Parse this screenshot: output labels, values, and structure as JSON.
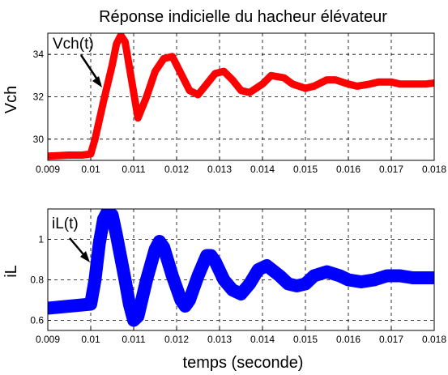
{
  "chart_data": [
    {
      "type": "line",
      "title": "Réponse indicielle du hacheur élévateur",
      "ylabel": "Vch",
      "xlabel": "",
      "xlim": [
        0.009,
        0.018
      ],
      "ylim": [
        29,
        35
      ],
      "grid": true,
      "xticks": [
        "0.009",
        "0.01",
        "0.011",
        "0.012",
        "0.013",
        "0.014",
        "0.015",
        "0.016",
        "0.017",
        "0.018"
      ],
      "yticks": [
        "30",
        "32",
        "34"
      ],
      "color": "#ff0000",
      "annotation": "Vch(t)",
      "series": [
        {
          "x": [
            0.009,
            0.0095,
            0.0098,
            0.01,
            0.0101,
            0.0103,
            0.0105,
            0.0106,
            0.0107,
            0.0108,
            0.011,
            0.0111,
            0.0113,
            0.0115,
            0.0117,
            0.0119,
            0.0121,
            0.0123,
            0.0125,
            0.0127,
            0.0129,
            0.0131,
            0.0133,
            0.0135,
            0.0137,
            0.014,
            0.0142,
            0.0145,
            0.0147,
            0.015,
            0.0152,
            0.0155,
            0.0157,
            0.016,
            0.0162,
            0.0165,
            0.0167,
            0.017,
            0.0172,
            0.0175,
            0.0178,
            0.018
          ],
          "values": [
            29.2,
            29.25,
            29.25,
            29.3,
            30.0,
            31.8,
            33.5,
            34.5,
            34.9,
            34.6,
            32.2,
            31.0,
            32.0,
            33.2,
            33.8,
            33.9,
            33.1,
            32.3,
            32.1,
            32.6,
            33.1,
            33.2,
            32.8,
            32.3,
            32.2,
            32.6,
            33.0,
            32.9,
            32.6,
            32.4,
            32.5,
            32.8,
            32.8,
            32.6,
            32.5,
            32.6,
            32.7,
            32.7,
            32.6,
            32.6,
            32.6,
            32.65
          ]
        }
      ]
    },
    {
      "type": "line",
      "title": "",
      "ylabel": "iL",
      "xlabel": "temps (seconde)",
      "xlim": [
        0.009,
        0.018
      ],
      "ylim": [
        0.55,
        1.15
      ],
      "grid": true,
      "xticks": [
        "0.009",
        "0.01",
        "0.011",
        "0.012",
        "0.013",
        "0.014",
        "0.015",
        "0.016",
        "0.017",
        "0.018"
      ],
      "yticks": [
        "0.6",
        "0.8",
        "1"
      ],
      "color": "#0000ff",
      "annotation": "iL(t)",
      "series": [
        {
          "x": [
            0.009,
            0.0095,
            0.01,
            0.0101,
            0.0102,
            0.0103,
            0.0104,
            0.0105,
            0.0106,
            0.0108,
            0.0109,
            0.011,
            0.0111,
            0.0113,
            0.0115,
            0.0116,
            0.0117,
            0.0119,
            0.0121,
            0.0122,
            0.0123,
            0.0125,
            0.0127,
            0.0128,
            0.0129,
            0.0131,
            0.0133,
            0.0135,
            0.0137,
            0.0139,
            0.0141,
            0.0144,
            0.0146,
            0.0148,
            0.015,
            0.0152,
            0.0155,
            0.0158,
            0.016,
            0.0163,
            0.0166,
            0.0169,
            0.0172,
            0.0175,
            0.0178,
            0.018
          ],
          "values": [
            0.66,
            0.67,
            0.68,
            0.8,
            0.98,
            1.1,
            1.14,
            1.12,
            1.02,
            0.8,
            0.68,
            0.6,
            0.62,
            0.8,
            0.95,
            0.99,
            0.96,
            0.82,
            0.7,
            0.67,
            0.7,
            0.82,
            0.92,
            0.92,
            0.89,
            0.8,
            0.75,
            0.73,
            0.78,
            0.85,
            0.87,
            0.82,
            0.78,
            0.77,
            0.78,
            0.82,
            0.84,
            0.82,
            0.8,
            0.79,
            0.8,
            0.82,
            0.82,
            0.81,
            0.81,
            0.81
          ]
        }
      ]
    }
  ]
}
